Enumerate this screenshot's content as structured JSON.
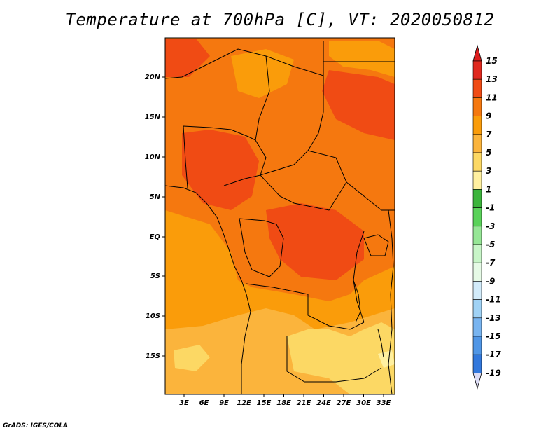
{
  "title": "Temperature at 700hPa [C], VT: 2020050812",
  "credit": "GrADS: IGES/COLA",
  "map": {
    "y_ticks": [
      "20N",
      "15N",
      "10N",
      "5N",
      "EQ",
      "5S",
      "10S",
      "15S"
    ],
    "x_ticks": [
      "3E",
      "6E",
      "9E",
      "12E",
      "15E",
      "18E",
      "21E",
      "24E",
      "27E",
      "30E",
      "33E"
    ]
  },
  "colorbar": {
    "labels": [
      "15",
      "13",
      "11",
      "9",
      "7",
      "5",
      "3",
      "1",
      "-1",
      "-3",
      "-5",
      "-7",
      "-9",
      "-11",
      "-13",
      "-15",
      "-17",
      "-19"
    ],
    "colors": [
      "#e0281e",
      "#f04b14",
      "#f5780f",
      "#fa9c0a",
      "#fbb43c",
      "#fcd864",
      "#fff0a0",
      "#3cb43c",
      "#5ad25a",
      "#96e696",
      "#c8f5c8",
      "#e6fae6",
      "#d2ebfa",
      "#a0d2f5",
      "#78b4f0",
      "#5096e6",
      "#3278dc",
      "#1e5ac8",
      "#143cb4",
      "#0a28a0",
      "#00147d"
    ],
    "top_arrow_color": "#dc1e1e",
    "bottom_arrow_color": "#dcdcf5"
  },
  "palette": {
    "t13": "#f04b14",
    "t11": "#f5780f",
    "t9": "#fa9c0a",
    "t7": "#fbb43c",
    "t5": "#fcd864",
    "t3": "#fff0a0"
  }
}
